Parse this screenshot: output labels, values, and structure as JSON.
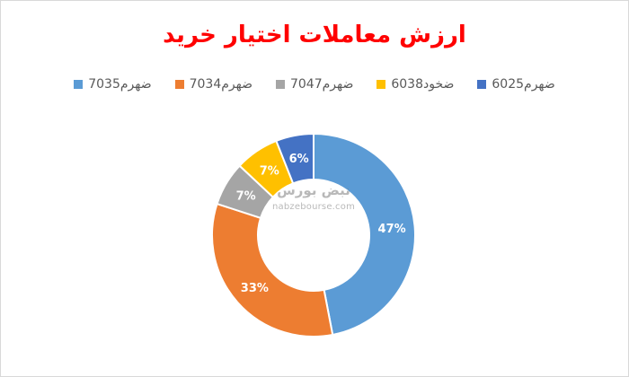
{
  "chart_data": {
    "type": "pie",
    "title": "ارزش معاملات اختیار خرید",
    "categories": [
      "ضهرم7035",
      "ضهرم7034",
      "ضهرم7047",
      "ضخود6038",
      "ضهرم6025"
    ],
    "values": [
      47,
      33,
      7,
      7,
      6
    ],
    "colors": [
      "#5b9bd5",
      "#ed7d31",
      "#a5a5a5",
      "#ffc000",
      "#4472c4"
    ],
    "data_labels": [
      "47%",
      "33%",
      "7%",
      "7%",
      "6%"
    ],
    "legend_position": "top",
    "donut": true
  },
  "watermark": {
    "logo_text": "نبض بورس",
    "url": "nabzebourse.com"
  }
}
